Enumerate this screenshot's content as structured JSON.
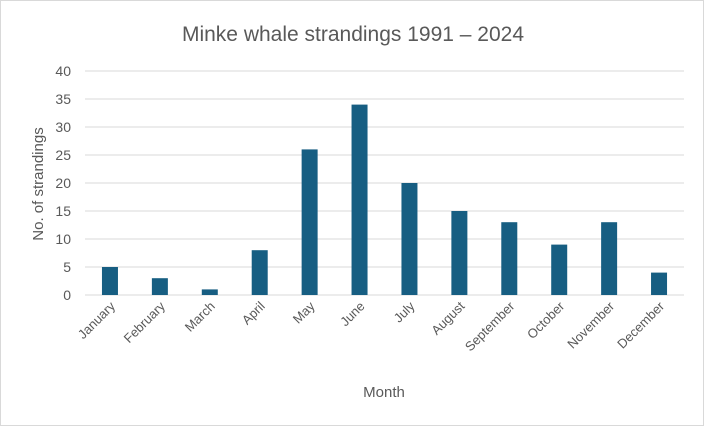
{
  "chart_data": {
    "type": "bar",
    "title": "Minke whale strandings 1991 – 2024",
    "xlabel": "Month",
    "ylabel": "No. of strandings",
    "categories": [
      "January",
      "February",
      "March",
      "April",
      "May",
      "June",
      "July",
      "August",
      "September",
      "October",
      "November",
      "December"
    ],
    "values": [
      5,
      3,
      1,
      8,
      26,
      34,
      20,
      15,
      13,
      9,
      13,
      4
    ],
    "ylim": [
      0,
      40
    ],
    "yticks": [
      0,
      5,
      10,
      15,
      20,
      25,
      30,
      35,
      40
    ],
    "grid": true,
    "legend": "none",
    "colors": {
      "bar": "#175e82",
      "grid": "#d9d9d9",
      "text": "#595959"
    }
  }
}
